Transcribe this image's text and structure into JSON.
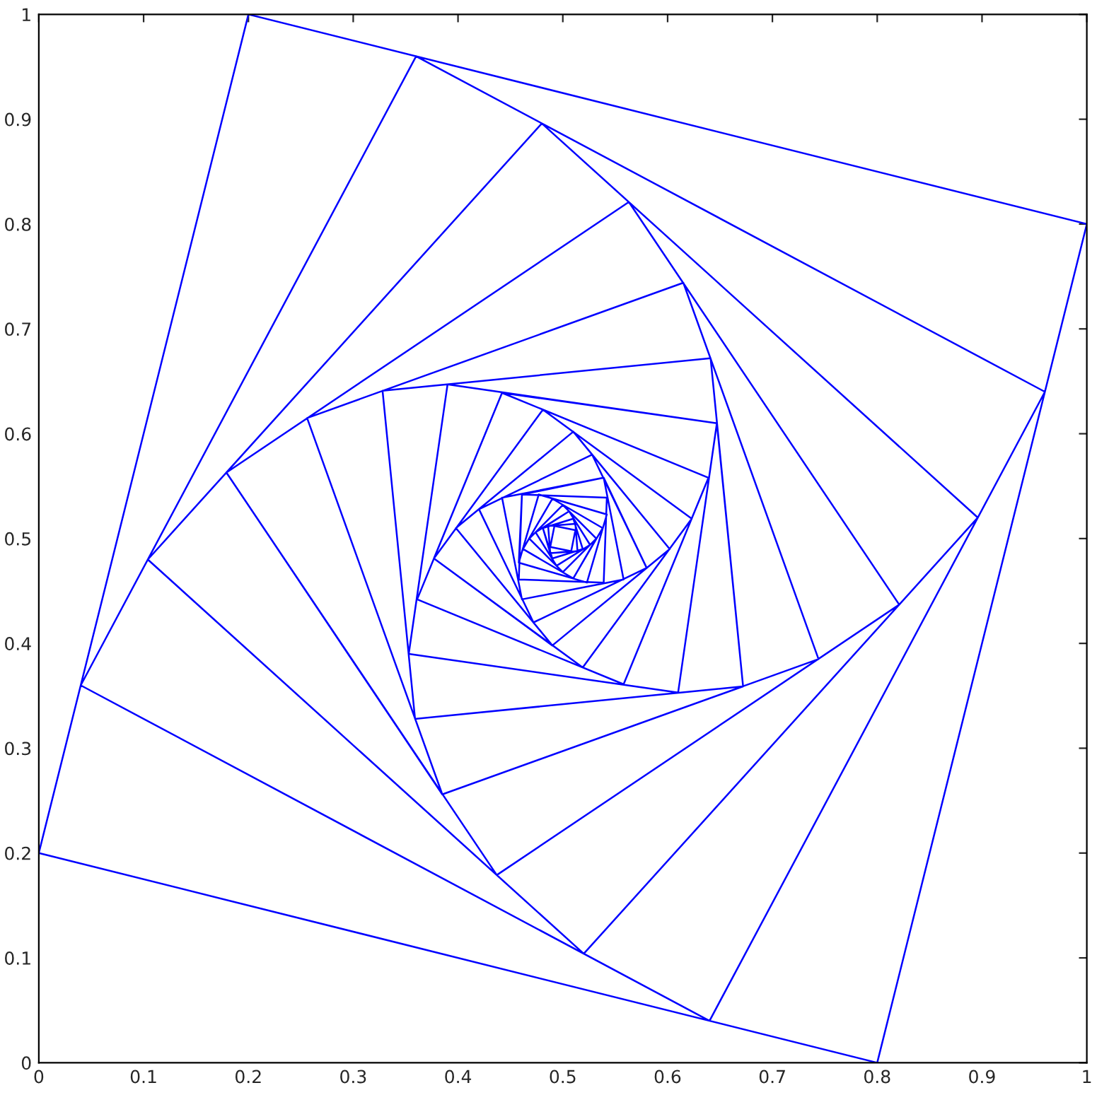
{
  "chart_data": {
    "type": "line",
    "series": [
      {
        "color": "#0000ff",
        "x": [
          0.8,
          1,
          0.2,
          0,
          0.8,
          0.96,
          0.36,
          0.04,
          0.64,
          0.96,
          0.48,
          0.104,
          0.52,
          0.896,
          0.48,
          0.179,
          0.437,
          0.821,
          0.563,
          0.179,
          0.385,
          0.744,
          0.615,
          0.256,
          0.385,
          0.672,
          0.641,
          0.328,
          0.359,
          0.672,
          0.647,
          0.39,
          0.353,
          0.61,
          0.647,
          0.442,
          0.361,
          0.558,
          0.639,
          0.442,
          0.377,
          0.519,
          0.623,
          0.481,
          0.377,
          0.49,
          0.602,
          0.51,
          0.398,
          0.49,
          0.58,
          0.528,
          0.42,
          0.472,
          0.58,
          0.539,
          0.442,
          0.461,
          0.558,
          0.539,
          0.461,
          0.458,
          0.539,
          0.542,
          0.461,
          0.458,
          0.523,
          0.542,
          0.477,
          0.458,
          0.51,
          0.538,
          0.49,
          0.462,
          0.51,
          0.532,
          0.5,
          0.468,
          0.5,
          0.532,
          0.506,
          0.474,
          0.494,
          0.526,
          0.506,
          0.481,
          0.49,
          0.519,
          0.51,
          0.481,
          0.488,
          0.514,
          0.512,
          0.486,
          0.488,
          0.508,
          0.512,
          0.492,
          0.488,
          0.508
        ],
        "values": [
          0,
          0.8,
          1,
          0.2,
          0,
          0.64,
          0.96,
          0.36,
          0.04,
          0.64,
          0.896,
          0.48,
          0.104,
          0.52,
          0.896,
          0.563,
          0.179,
          0.437,
          0.821,
          0.563,
          0.256,
          0.385,
          0.744,
          0.615,
          0.256,
          0.359,
          0.672,
          0.641,
          0.328,
          0.359,
          0.61,
          0.647,
          0.39,
          0.353,
          0.61,
          0.639,
          0.442,
          0.361,
          0.558,
          0.639,
          0.481,
          0.377,
          0.519,
          0.623,
          0.481,
          0.398,
          0.49,
          0.602,
          0.51,
          0.398,
          0.472,
          0.58,
          0.528,
          0.42,
          0.472,
          0.558,
          0.539,
          0.442,
          0.461,
          0.558,
          0.542,
          0.461,
          0.458,
          0.539,
          0.542,
          0.477,
          0.458,
          0.523,
          0.542,
          0.477,
          0.462,
          0.51,
          0.538,
          0.49,
          0.462,
          0.5,
          0.532,
          0.5,
          0.468,
          0.5,
          0.526,
          0.506,
          0.474,
          0.494,
          0.526,
          0.51,
          0.481,
          0.49,
          0.519,
          0.51,
          0.486,
          0.488,
          0.514,
          0.512,
          0.486,
          0.488,
          0.508,
          0.512,
          0.492,
          0.488
        ]
      }
    ],
    "xlim": [
      0,
      1
    ],
    "ylim": [
      0,
      1
    ],
    "xticks": [
      0,
      0.1,
      0.2,
      0.3,
      0.4,
      0.5,
      0.6,
      0.7,
      0.8,
      0.9,
      1
    ],
    "yticks": [
      0,
      0.1,
      0.2,
      0.3,
      0.4,
      0.5,
      0.6,
      0.7,
      0.8,
      0.9,
      1
    ],
    "grid": false,
    "legend": false,
    "marker": "none",
    "line_style": "solid"
  }
}
